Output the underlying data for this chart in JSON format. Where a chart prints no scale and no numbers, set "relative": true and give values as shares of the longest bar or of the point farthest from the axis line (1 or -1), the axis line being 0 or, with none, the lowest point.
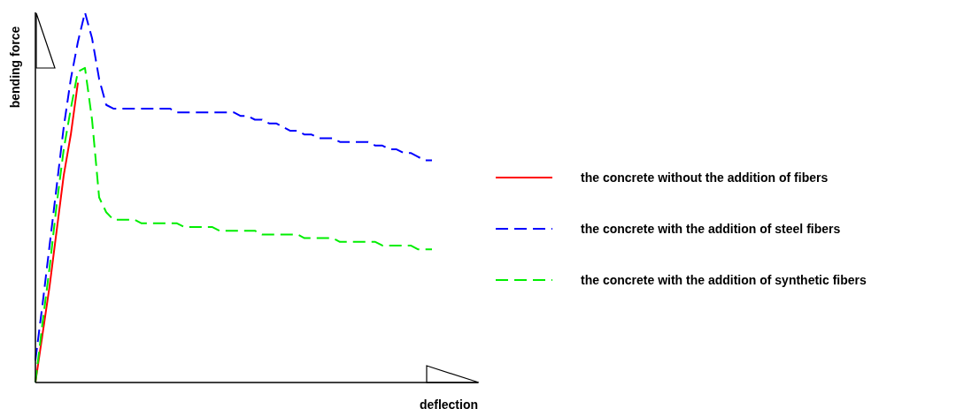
{
  "chart_data": {
    "type": "line",
    "relative": true,
    "xlabel": "deflection",
    "ylabel": "bending force",
    "grid": false,
    "marker": "none",
    "legend": "right",
    "categories": [
      null,
      null,
      null,
      null,
      null,
      null,
      null,
      null,
      null,
      null,
      null,
      null,
      null,
      null,
      null,
      null,
      null,
      null,
      null,
      null,
      null,
      null,
      null,
      null,
      null,
      null,
      null,
      null,
      null,
      null,
      null,
      null,
      null,
      null,
      null,
      null,
      null,
      null,
      null,
      null,
      null,
      null,
      null,
      null,
      null,
      null,
      null,
      null,
      null,
      null,
      null,
      null,
      null,
      null,
      null,
      null,
      null
    ],
    "series": [
      {
        "name": "the concrete without the addition of fibers",
        "color": "#ff0000",
        "line_style": "solid",
        "values": [
          0,
          0.13,
          0.26,
          0.41,
          0.56,
          0.67,
          0.81,
          null,
          null,
          null,
          null,
          null,
          null,
          null,
          null,
          null,
          null,
          null,
          null,
          null,
          null,
          null,
          null,
          null,
          null,
          null,
          null,
          null,
          null,
          null,
          null,
          null,
          null,
          null,
          null,
          null,
          null,
          null,
          null,
          null,
          null,
          null,
          null,
          null,
          null,
          null,
          null,
          null,
          null,
          null,
          null,
          null,
          null,
          null,
          null,
          null,
          null
        ]
      },
      {
        "name": "the concrete with the addition of steel fibers",
        "color": "#0000ff",
        "line_style": "dashed",
        "values": [
          0.06,
          0.21,
          0.37,
          0.53,
          0.69,
          0.82,
          0.92,
          1,
          0.93,
          0.82,
          0.75,
          0.74,
          0.74,
          0.74,
          0.74,
          0.74,
          0.74,
          0.74,
          0.74,
          0.74,
          0.73,
          0.73,
          0.73,
          0.73,
          0.73,
          0.73,
          0.73,
          0.73,
          0.73,
          0.72,
          0.72,
          0.71,
          0.71,
          0.7,
          0.7,
          0.69,
          0.68,
          0.68,
          0.67,
          0.67,
          0.66,
          0.66,
          0.66,
          0.65,
          0.65,
          0.65,
          0.65,
          0.65,
          0.64,
          0.64,
          0.63,
          0.63,
          0.62,
          0.62,
          0.61,
          0.6,
          0.6
        ]
      },
      {
        "name": "the concrete with the addition of synthetic fibers",
        "color": "#00ee00",
        "line_style": "dashed",
        "values": [
          0,
          0.16,
          0.31,
          0.48,
          0.63,
          0.74,
          0.84,
          0.85,
          0.71,
          0.5,
          0.46,
          0.44,
          0.44,
          0.44,
          0.44,
          0.43,
          0.43,
          0.43,
          0.43,
          0.43,
          0.43,
          0.42,
          0.42,
          0.42,
          0.42,
          0.42,
          0.41,
          0.41,
          0.41,
          0.41,
          0.41,
          0.41,
          0.4,
          0.4,
          0.4,
          0.4,
          0.4,
          0.4,
          0.39,
          0.39,
          0.39,
          0.39,
          0.39,
          0.38,
          0.38,
          0.38,
          0.38,
          0.38,
          0.38,
          0.37,
          0.37,
          0.37,
          0.37,
          0.37,
          0.36,
          0.36,
          0.36
        ]
      }
    ]
  }
}
